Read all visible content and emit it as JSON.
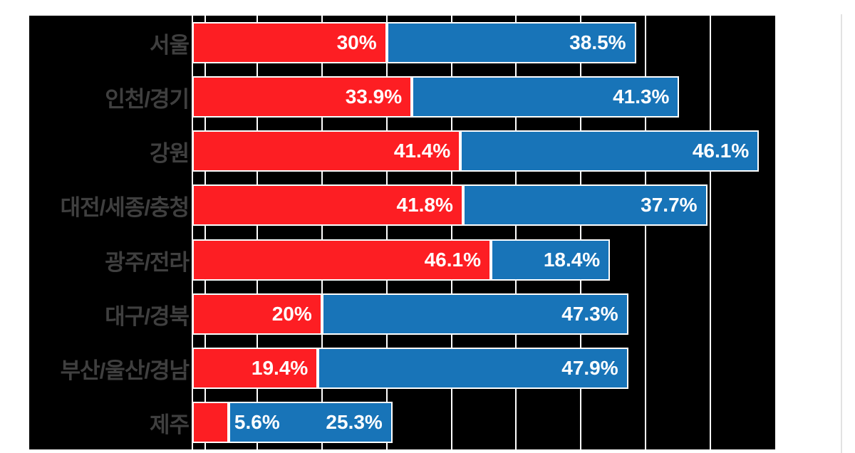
{
  "chart_data": {
    "type": "bar",
    "orientation": "horizontal",
    "stacked": true,
    "title": "",
    "legend": "none",
    "categories": [
      "서울",
      "인천/경기",
      "강원",
      "대전/세종/충청",
      "광주/전라",
      "대구/경북",
      "부산/울산/경남",
      "제주"
    ],
    "series": [
      {
        "name": "red-series",
        "color": "#fd1e23",
        "values": [
          30,
          33.9,
          41.4,
          41.8,
          46.1,
          20,
          19.4,
          5.6
        ],
        "labels": [
          "30%",
          "33.9%",
          "41.4%",
          "41.8%",
          "46.1%",
          "20%",
          "19.4%",
          "5.6%"
        ]
      },
      {
        "name": "blue-series",
        "color": "#1874b8",
        "values": [
          38.5,
          41.3,
          46.1,
          37.7,
          18.4,
          47.3,
          47.9,
          25.3
        ],
        "labels": [
          "38.5%",
          "41.3%",
          "46.1%",
          "37.7%",
          "18.4%",
          "47.3%",
          "47.9%",
          "25.3%"
        ]
      }
    ],
    "xlim": [
      0,
      90
    ],
    "gridline_values": [
      0,
      2,
      10,
      20,
      30,
      40,
      50,
      60,
      70,
      80
    ],
    "gridline_color": "#ffffff",
    "plot_background": "#000000",
    "category_label_color": "#3f3f3f",
    "data_label_color": "#ffffff"
  },
  "page": {
    "background": "#ffffff",
    "divider_color": "#e2e2e2"
  }
}
